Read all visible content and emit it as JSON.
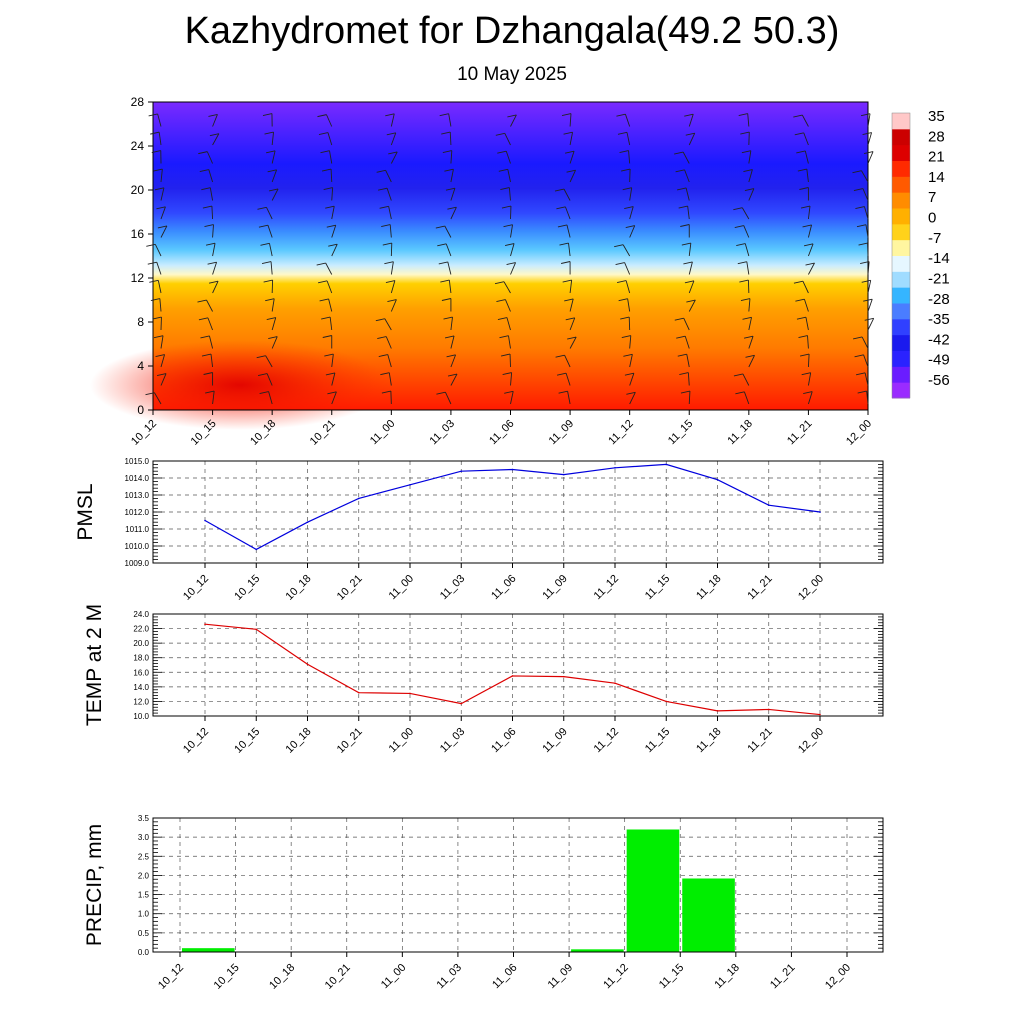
{
  "header": {
    "title": "Kazhydromet for Dzhangala(49.2 50.3)",
    "subtitle": "10 May 2025"
  },
  "colors": {
    "pmsl_line": "#0000dd",
    "temp_line": "#dd0000",
    "precip_bar": "#00ee00",
    "colorbar": [
      "#9a2bff",
      "#6a1cff",
      "#2a22ff",
      "#1a1aee",
      "#3040ff",
      "#4a7dff",
      "#35b5ff",
      "#a0dcff",
      "#e6f7ff",
      "#fff6a0",
      "#ffd21a",
      "#ffb000",
      "#ff8c00",
      "#ff5a00",
      "#ff2a00",
      "#dd0000",
      "#cc0000",
      "#ffc8c8"
    ]
  },
  "chart_data": [
    {
      "id": "vertical-section",
      "type": "heatmap",
      "x_categories": [
        "10_12",
        "10_15",
        "10_18",
        "10_21",
        "11_00",
        "11_03",
        "11_06",
        "11_09",
        "11_12",
        "11_15",
        "11_18",
        "11_21",
        "12_00"
      ],
      "y_ticks": [
        "0",
        "4",
        "8",
        "12",
        "16",
        "20",
        "24",
        "28"
      ],
      "ylim": [
        0,
        28
      ],
      "colorbar_labels": [
        "35",
        "28",
        "21",
        "14",
        "7",
        "0",
        "-7",
        "-14",
        "-21",
        "-28",
        "-35",
        "-42",
        "-49",
        "-56"
      ],
      "overlay": "wind-barbs"
    },
    {
      "id": "pmsl",
      "type": "line",
      "ylabel": "PMSL",
      "categories": [
        "10_12",
        "10_15",
        "10_18",
        "10_21",
        "11_00",
        "11_03",
        "11_06",
        "11_09",
        "11_12",
        "11_15",
        "11_18",
        "11_21",
        "12_00"
      ],
      "values": [
        1011.5,
        1009.8,
        1011.4,
        1012.8,
        1013.6,
        1014.4,
        1014.5,
        1014.2,
        1014.6,
        1014.8,
        1013.9,
        1012.4,
        1012.0
      ],
      "ylim": [
        1009.0,
        1015.0
      ],
      "y_ticks": [
        "1009.0",
        "1010.0",
        "1011.0",
        "1012.0",
        "1013.0",
        "1014.0",
        "1015.0"
      ],
      "grid": true
    },
    {
      "id": "temp",
      "type": "line",
      "ylabel": "TEMP at 2 M",
      "categories": [
        "10_12",
        "10_15",
        "10_18",
        "10_21",
        "11_00",
        "11_03",
        "11_06",
        "11_09",
        "11_12",
        "11_15",
        "11_18",
        "11_21",
        "12_00"
      ],
      "values": [
        22.6,
        21.9,
        17.1,
        13.2,
        13.1,
        11.7,
        15.5,
        15.4,
        14.5,
        12.0,
        10.7,
        10.9,
        10.2
      ],
      "ylim": [
        10.0,
        24.0
      ],
      "y_ticks": [
        "10.0",
        "12.0",
        "14.0",
        "16.0",
        "18.0",
        "20.0",
        "22.0",
        "24.0"
      ],
      "grid": true
    },
    {
      "id": "precip",
      "type": "bar",
      "ylabel": "PRECIP, mm",
      "categories": [
        "10_12",
        "10_15",
        "10_18",
        "10_21",
        "11_00",
        "11_03",
        "11_06",
        "11_09",
        "11_12",
        "11_15",
        "11_18",
        "11_21",
        "12_00"
      ],
      "values": [
        0,
        0.1,
        0,
        0,
        0,
        0,
        0,
        0,
        0.07,
        3.2,
        1.92,
        0,
        0
      ],
      "ylim": [
        0,
        3.5
      ],
      "y_ticks": [
        "0.0",
        "0.5",
        "1.0",
        "1.5",
        "2.0",
        "2.5",
        "3.0",
        "3.5"
      ],
      "grid": true
    }
  ]
}
